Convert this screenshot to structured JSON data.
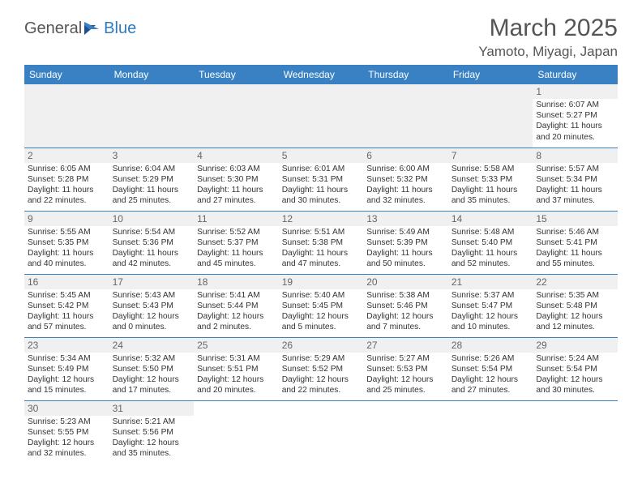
{
  "brand": {
    "general": "General",
    "blue": "Blue"
  },
  "title": "March 2025",
  "location": "Yamoto, Miyagi, Japan",
  "day_headers": [
    "Sunday",
    "Monday",
    "Tuesday",
    "Wednesday",
    "Thursday",
    "Friday",
    "Saturday"
  ],
  "colors": {
    "header_bg": "#3a81c4",
    "header_fg": "#ffffff",
    "cell_border": "#3a81c4",
    "daynum_bg": "#f0f0f0",
    "text": "#333333",
    "title_text": "#555555"
  },
  "weeks": [
    [
      null,
      null,
      null,
      null,
      null,
      null,
      {
        "n": "1",
        "sr": "6:07 AM",
        "ss": "5:27 PM",
        "dl": "11 hours and 20 minutes."
      }
    ],
    [
      {
        "n": "2",
        "sr": "6:05 AM",
        "ss": "5:28 PM",
        "dl": "11 hours and 22 minutes."
      },
      {
        "n": "3",
        "sr": "6:04 AM",
        "ss": "5:29 PM",
        "dl": "11 hours and 25 minutes."
      },
      {
        "n": "4",
        "sr": "6:03 AM",
        "ss": "5:30 PM",
        "dl": "11 hours and 27 minutes."
      },
      {
        "n": "5",
        "sr": "6:01 AM",
        "ss": "5:31 PM",
        "dl": "11 hours and 30 minutes."
      },
      {
        "n": "6",
        "sr": "6:00 AM",
        "ss": "5:32 PM",
        "dl": "11 hours and 32 minutes."
      },
      {
        "n": "7",
        "sr": "5:58 AM",
        "ss": "5:33 PM",
        "dl": "11 hours and 35 minutes."
      },
      {
        "n": "8",
        "sr": "5:57 AM",
        "ss": "5:34 PM",
        "dl": "11 hours and 37 minutes."
      }
    ],
    [
      {
        "n": "9",
        "sr": "5:55 AM",
        "ss": "5:35 PM",
        "dl": "11 hours and 40 minutes."
      },
      {
        "n": "10",
        "sr": "5:54 AM",
        "ss": "5:36 PM",
        "dl": "11 hours and 42 minutes."
      },
      {
        "n": "11",
        "sr": "5:52 AM",
        "ss": "5:37 PM",
        "dl": "11 hours and 45 minutes."
      },
      {
        "n": "12",
        "sr": "5:51 AM",
        "ss": "5:38 PM",
        "dl": "11 hours and 47 minutes."
      },
      {
        "n": "13",
        "sr": "5:49 AM",
        "ss": "5:39 PM",
        "dl": "11 hours and 50 minutes."
      },
      {
        "n": "14",
        "sr": "5:48 AM",
        "ss": "5:40 PM",
        "dl": "11 hours and 52 minutes."
      },
      {
        "n": "15",
        "sr": "5:46 AM",
        "ss": "5:41 PM",
        "dl": "11 hours and 55 minutes."
      }
    ],
    [
      {
        "n": "16",
        "sr": "5:45 AM",
        "ss": "5:42 PM",
        "dl": "11 hours and 57 minutes."
      },
      {
        "n": "17",
        "sr": "5:43 AM",
        "ss": "5:43 PM",
        "dl": "12 hours and 0 minutes."
      },
      {
        "n": "18",
        "sr": "5:41 AM",
        "ss": "5:44 PM",
        "dl": "12 hours and 2 minutes."
      },
      {
        "n": "19",
        "sr": "5:40 AM",
        "ss": "5:45 PM",
        "dl": "12 hours and 5 minutes."
      },
      {
        "n": "20",
        "sr": "5:38 AM",
        "ss": "5:46 PM",
        "dl": "12 hours and 7 minutes."
      },
      {
        "n": "21",
        "sr": "5:37 AM",
        "ss": "5:47 PM",
        "dl": "12 hours and 10 minutes."
      },
      {
        "n": "22",
        "sr": "5:35 AM",
        "ss": "5:48 PM",
        "dl": "12 hours and 12 minutes."
      }
    ],
    [
      {
        "n": "23",
        "sr": "5:34 AM",
        "ss": "5:49 PM",
        "dl": "12 hours and 15 minutes."
      },
      {
        "n": "24",
        "sr": "5:32 AM",
        "ss": "5:50 PM",
        "dl": "12 hours and 17 minutes."
      },
      {
        "n": "25",
        "sr": "5:31 AM",
        "ss": "5:51 PM",
        "dl": "12 hours and 20 minutes."
      },
      {
        "n": "26",
        "sr": "5:29 AM",
        "ss": "5:52 PM",
        "dl": "12 hours and 22 minutes."
      },
      {
        "n": "27",
        "sr": "5:27 AM",
        "ss": "5:53 PM",
        "dl": "12 hours and 25 minutes."
      },
      {
        "n": "28",
        "sr": "5:26 AM",
        "ss": "5:54 PM",
        "dl": "12 hours and 27 minutes."
      },
      {
        "n": "29",
        "sr": "5:24 AM",
        "ss": "5:54 PM",
        "dl": "12 hours and 30 minutes."
      }
    ],
    [
      {
        "n": "30",
        "sr": "5:23 AM",
        "ss": "5:55 PM",
        "dl": "12 hours and 32 minutes."
      },
      {
        "n": "31",
        "sr": "5:21 AM",
        "ss": "5:56 PM",
        "dl": "12 hours and 35 minutes."
      },
      null,
      null,
      null,
      null,
      null
    ]
  ],
  "labels": {
    "sunrise": "Sunrise:",
    "sunset": "Sunset:",
    "daylight": "Daylight:"
  }
}
